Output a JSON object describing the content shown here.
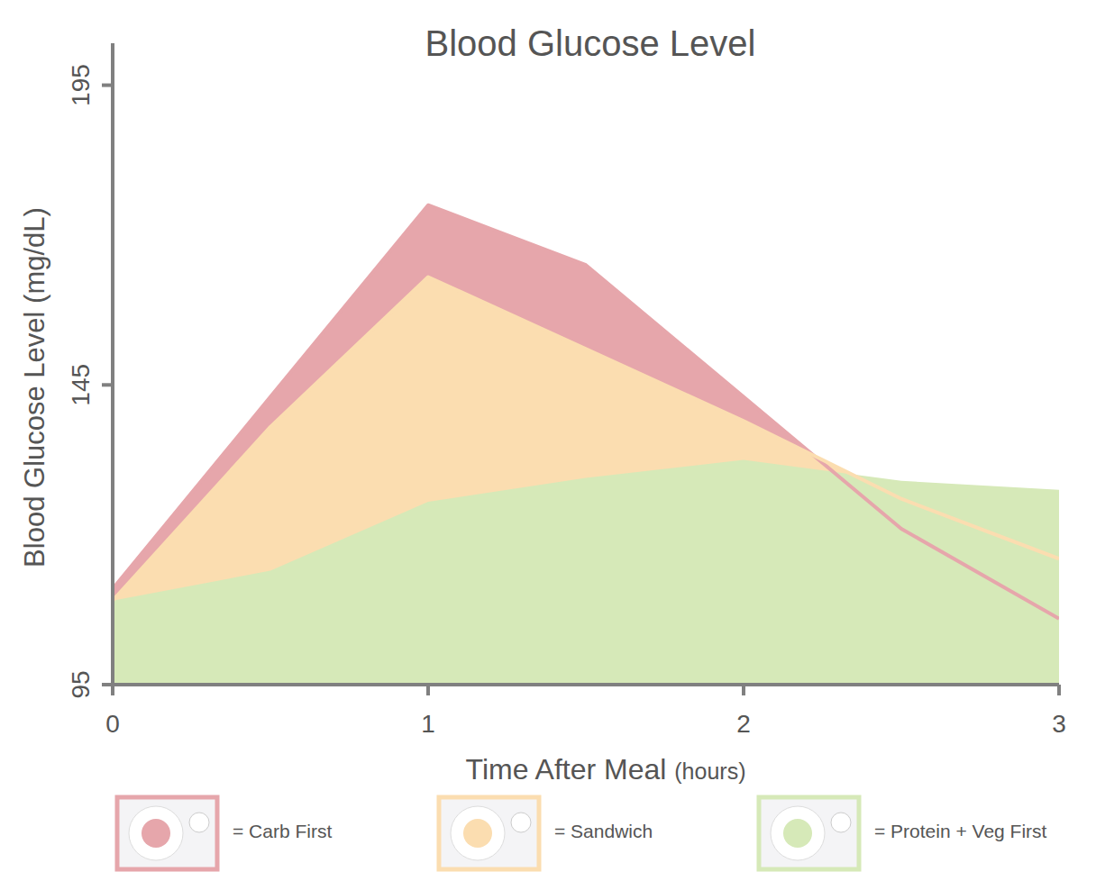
{
  "chart_data": {
    "type": "area",
    "title": "Blood Glucose Level",
    "x_label": "Time After Meal (hours)",
    "y_label": "Blood Glucose Level (mg/dL)",
    "x": [
      0,
      0.5,
      1,
      1.5,
      2,
      2.5,
      3
    ],
    "series": [
      {
        "name": "= Carb First",
        "color": "#e6a6ab",
        "values": [
          111,
          143,
          175,
          165,
          143,
          121,
          106
        ]
      },
      {
        "name": "= Sandwich",
        "color": "#fbddb0",
        "values": [
          109,
          138,
          163,
          151,
          139,
          126,
          116
        ]
      },
      {
        "name": "= Protein + Veg First",
        "color": "#d6e9b8",
        "values": [
          109,
          114,
          125.5,
          129.5,
          132.5,
          129,
          127.5
        ]
      }
    ],
    "xlim": [
      0,
      3
    ],
    "xticks": [
      0,
      1,
      2,
      3
    ],
    "ylim": [
      95,
      202
    ],
    "yticks": [
      95,
      145,
      195
    ],
    "legend": "bottom",
    "grid": false
  }
}
